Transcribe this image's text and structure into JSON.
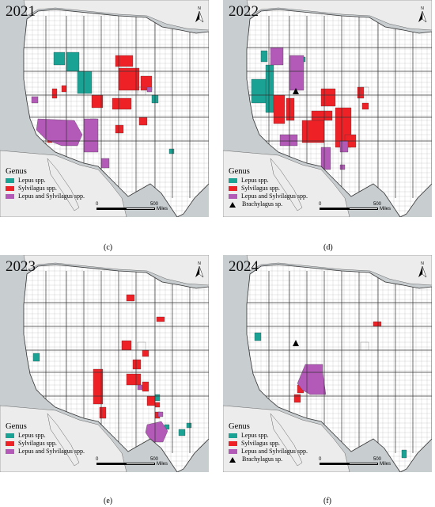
{
  "panels": [
    {
      "year": "2021",
      "caption": "(c)",
      "show_brachy": false
    },
    {
      "year": "2022",
      "caption": "(d)",
      "show_brachy": true
    },
    {
      "year": "2023",
      "caption": "(e)",
      "show_brachy": false
    },
    {
      "year": "2024",
      "caption": "(f)",
      "show_brachy": true
    }
  ],
  "legend": {
    "title": "Genus",
    "lepus": "Lepus spp.",
    "sylvilagus": "Sylvilagus spp.",
    "both": "Lepus and Sylvilagus spp.",
    "brachy": "Brachylagus sp."
  },
  "scale": {
    "zero": "0",
    "five_hundred": "500",
    "unit": "Miles"
  },
  "north_label": "N",
  "colors": {
    "lepus": "#1aa394",
    "sylvilagus": "#ee2127",
    "both": "#b35ab8",
    "land": "#ffffff",
    "ocean": "#c8cdd0"
  }
}
